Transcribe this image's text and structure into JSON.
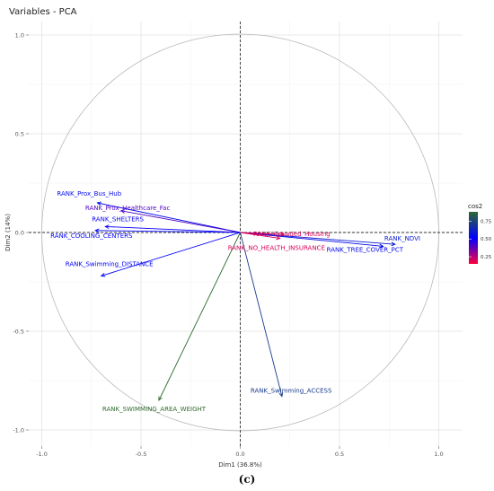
{
  "chart_data": {
    "type": "pca_variables_correlation_circle",
    "title": "Variables - PCA",
    "xlabel": "Dim1 (36.8%)",
    "ylabel": "Dim2 (14%)",
    "xlim": [
      -1.1,
      1.1
    ],
    "ylim": [
      -1.05,
      1.05
    ],
    "x_ticks": [
      -1.0,
      -0.5,
      0.0,
      0.5,
      1.0
    ],
    "y_ticks": [
      -1.0,
      -0.5,
      0.0,
      0.5,
      1.0
    ],
    "x_tick_labels": [
      "-1.0",
      "-0.5",
      "0.0",
      "0.5",
      "1.0"
    ],
    "y_tick_labels": [
      "-1.0",
      "-0.5",
      "0.0",
      "0.5",
      "1.0"
    ],
    "grid": true,
    "legend": {
      "title": "cos2",
      "placement": "right",
      "ticks": [
        "0.75",
        "0.50",
        "0.25"
      ],
      "tick_values": [
        0.75,
        0.5,
        0.25
      ],
      "range": [
        0.15,
        0.88
      ],
      "colors": [
        "#ff0040",
        "#0000ff",
        "#2e6b2e"
      ]
    },
    "variables": [
      {
        "name": "RANK_Prox_Bus_Hub",
        "x": -0.72,
        "y": 0.15,
        "cos2": 0.55
      },
      {
        "name": "RANK_Prox_Healthcare_Fac",
        "x": -0.6,
        "y": 0.11,
        "cos2": 0.4
      },
      {
        "name": "RANK_SHELTERS",
        "x": -0.68,
        "y": 0.03,
        "cos2": 0.5
      },
      {
        "name": "RANK_COOLING_CENTERS",
        "x": -0.73,
        "y": 0.01,
        "cos2": 0.53
      },
      {
        "name": "RANK_Swimming_DISTANCE",
        "x": -0.7,
        "y": -0.22,
        "cos2": 0.52
      },
      {
        "name": "RANK_SWIMMING_AREA_WEIGHT",
        "x": -0.41,
        "y": -0.85,
        "cos2": 0.88
      },
      {
        "name": "RANK_Swimming_ACCESS",
        "x": 0.21,
        "y": -0.83,
        "cos2": 0.72
      },
      {
        "name": "RANK_NDVI",
        "x": 0.78,
        "y": -0.06,
        "cos2": 0.6
      },
      {
        "name": "RANK_TREE_COVER_PCT",
        "x": 0.72,
        "y": -0.07,
        "cos2": 0.55
      },
      {
        "name": "RANK_Crowded_Housing",
        "x": 0.22,
        "y": -0.01,
        "cos2": 0.2
      },
      {
        "name": "RANK_NO_HEALTH_INSURANCE",
        "x": 0.2,
        "y": -0.03,
        "cos2": 0.2
      }
    ]
  },
  "caption": "(c)"
}
